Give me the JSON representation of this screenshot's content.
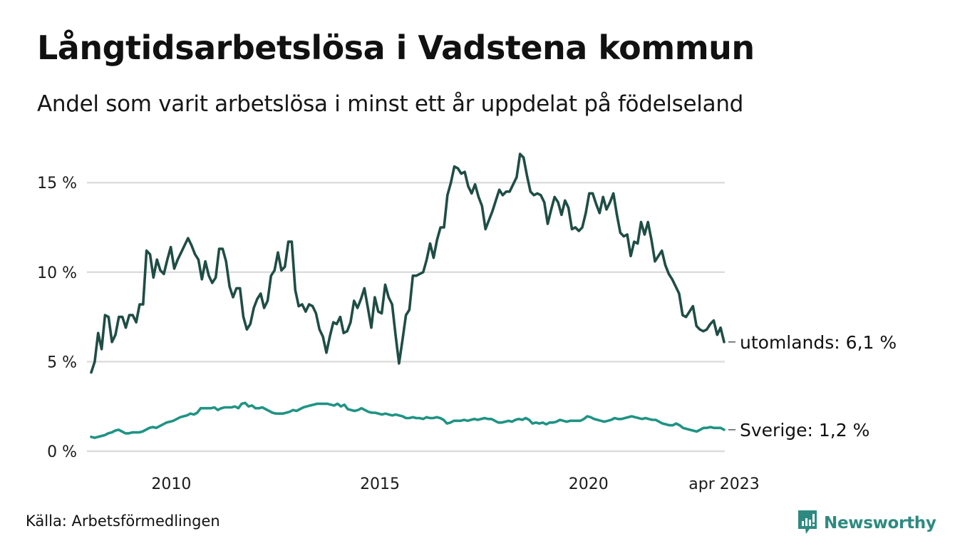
{
  "header": {
    "title": "Långtidsarbetslösa i Vadstena kommun",
    "subtitle": "Andel som varit arbetslösa i minst ett år uppdelat på födelseland"
  },
  "footer": {
    "source": "Källa: Arbetsförmedlingen",
    "brand": "Newsworthy",
    "brand_icon": "bar-chart-speech-bubble-icon"
  },
  "colors": {
    "utomlands": "#1f4d45",
    "sverige": "#1f9384",
    "grid": "#dddddd",
    "brand": "#2e8a80"
  },
  "chart_data": {
    "type": "line",
    "title": "Långtidsarbetslösa i Vadstena kommun",
    "subtitle": "Andel som varit arbetslösa i minst ett år uppdelat på födelseland",
    "xlabel": "",
    "ylabel": "",
    "x_start": "2008-02",
    "x_end": "2023-04",
    "x_frequency": "monthly",
    "xlim": [
      2008.08,
      2023.25
    ],
    "ylim": [
      0,
      17
    ],
    "grid": true,
    "y_ticks": [
      {
        "value": 0,
        "label": "0 %"
      },
      {
        "value": 5,
        "label": "5 %"
      },
      {
        "value": 10,
        "label": "10 %"
      },
      {
        "value": 15,
        "label": "15 %"
      }
    ],
    "x_ticks": [
      {
        "value": 2010.0,
        "label": "2010"
      },
      {
        "value": 2015.0,
        "label": "2015"
      },
      {
        "value": 2020.0,
        "label": "2020"
      },
      {
        "value": 2023.25,
        "label": "apr 2023"
      }
    ],
    "legend": "end-of-line labels (right)",
    "series": [
      {
        "name": "utomlands",
        "end_label": "utomlands: 6,1 %",
        "values": [
          4.4,
          5.0,
          6.6,
          5.7,
          7.6,
          7.5,
          6.1,
          6.5,
          7.5,
          7.5,
          6.9,
          7.6,
          7.6,
          7.2,
          8.2,
          8.2,
          11.2,
          11.0,
          9.7,
          10.7,
          10.1,
          9.9,
          10.7,
          11.4,
          10.2,
          10.7,
          11.1,
          11.5,
          11.9,
          11.5,
          11.0,
          10.7,
          9.6,
          10.6,
          9.8,
          9.4,
          9.7,
          11.3,
          11.3,
          10.6,
          9.2,
          8.6,
          9.1,
          9.1,
          7.5,
          6.8,
          7.1,
          8.0,
          8.5,
          8.8,
          8.0,
          8.4,
          9.8,
          10.1,
          11.1,
          10.1,
          10.3,
          11.7,
          11.7,
          9.0,
          8.1,
          8.2,
          7.8,
          8.2,
          8.1,
          7.7,
          6.8,
          6.4,
          5.5,
          6.4,
          7.2,
          7.1,
          7.5,
          6.6,
          6.7,
          7.2,
          8.4,
          8.0,
          8.5,
          9.1,
          8.0,
          6.9,
          8.6,
          7.8,
          7.7,
          9.3,
          8.6,
          8.2,
          6.5,
          4.9,
          6.2,
          7.6,
          7.9,
          9.8,
          9.8,
          9.9,
          10.0,
          10.7,
          11.6,
          10.8,
          11.8,
          12.5,
          12.5,
          14.3,
          15.0,
          15.9,
          15.8,
          15.5,
          15.6,
          14.8,
          14.4,
          14.9,
          14.2,
          13.7,
          12.4,
          12.9,
          13.4,
          14.0,
          14.6,
          14.3,
          14.5,
          14.5,
          14.9,
          15.3,
          16.6,
          16.4,
          15.4,
          14.5,
          14.3,
          14.4,
          14.3,
          13.9,
          12.7,
          13.5,
          14.2,
          13.9,
          13.2,
          14.0,
          13.6,
          12.4,
          12.5,
          12.3,
          12.5,
          13.3,
          14.4,
          14.4,
          13.8,
          13.3,
          14.2,
          13.5,
          13.9,
          14.4,
          13.2,
          12.2,
          12.0,
          12.1,
          10.9,
          11.7,
          11.6,
          12.8,
          12.1,
          12.8,
          11.8,
          10.6,
          10.9,
          11.2,
          10.4,
          9.9,
          9.6,
          9.2,
          8.8,
          7.6,
          7.5,
          7.8,
          8.1,
          7.0,
          6.8,
          6.7,
          6.8,
          7.1,
          7.3,
          6.5,
          6.9,
          6.1
        ]
      },
      {
        "name": "Sverige",
        "end_label": "Sverige: 1,2 %",
        "values": [
          0.8,
          0.75,
          0.8,
          0.85,
          0.9,
          1.0,
          1.05,
          1.15,
          1.2,
          1.1,
          1.0,
          1.0,
          1.05,
          1.05,
          1.05,
          1.1,
          1.2,
          1.3,
          1.35,
          1.3,
          1.4,
          1.5,
          1.6,
          1.65,
          1.7,
          1.8,
          1.9,
          1.95,
          2.0,
          2.1,
          2.05,
          2.15,
          2.4,
          2.4,
          2.4,
          2.4,
          2.45,
          2.3,
          2.4,
          2.45,
          2.45,
          2.45,
          2.5,
          2.4,
          2.65,
          2.7,
          2.5,
          2.55,
          2.4,
          2.4,
          2.45,
          2.35,
          2.25,
          2.15,
          2.1,
          2.1,
          2.1,
          2.15,
          2.2,
          2.3,
          2.25,
          2.35,
          2.45,
          2.5,
          2.55,
          2.6,
          2.65,
          2.65,
          2.65,
          2.65,
          2.6,
          2.55,
          2.65,
          2.5,
          2.6,
          2.35,
          2.3,
          2.25,
          2.3,
          2.4,
          2.3,
          2.2,
          2.15,
          2.15,
          2.1,
          2.05,
          2.1,
          2.05,
          2.0,
          2.05,
          2.0,
          1.95,
          1.85,
          1.85,
          1.9,
          1.85,
          1.85,
          1.8,
          1.9,
          1.85,
          1.85,
          1.9,
          1.85,
          1.75,
          1.55,
          1.6,
          1.7,
          1.7,
          1.7,
          1.75,
          1.7,
          1.75,
          1.8,
          1.75,
          1.8,
          1.85,
          1.8,
          1.8,
          1.7,
          1.6,
          1.6,
          1.65,
          1.7,
          1.65,
          1.75,
          1.8,
          1.75,
          1.85,
          1.75,
          1.55,
          1.6,
          1.55,
          1.6,
          1.5,
          1.6,
          1.6,
          1.65,
          1.75,
          1.7,
          1.65,
          1.7,
          1.7,
          1.7,
          1.7,
          1.8,
          1.95,
          1.9,
          1.8,
          1.75,
          1.7,
          1.65,
          1.7,
          1.75,
          1.85,
          1.8,
          1.8,
          1.85,
          1.9,
          1.95,
          1.9,
          1.85,
          1.8,
          1.85,
          1.8,
          1.75,
          1.75,
          1.65,
          1.55,
          1.5,
          1.45,
          1.45,
          1.55,
          1.45,
          1.3,
          1.25,
          1.2,
          1.15,
          1.1,
          1.2,
          1.3,
          1.3,
          1.35,
          1.3,
          1.3,
          1.3,
          1.2
        ]
      }
    ]
  }
}
